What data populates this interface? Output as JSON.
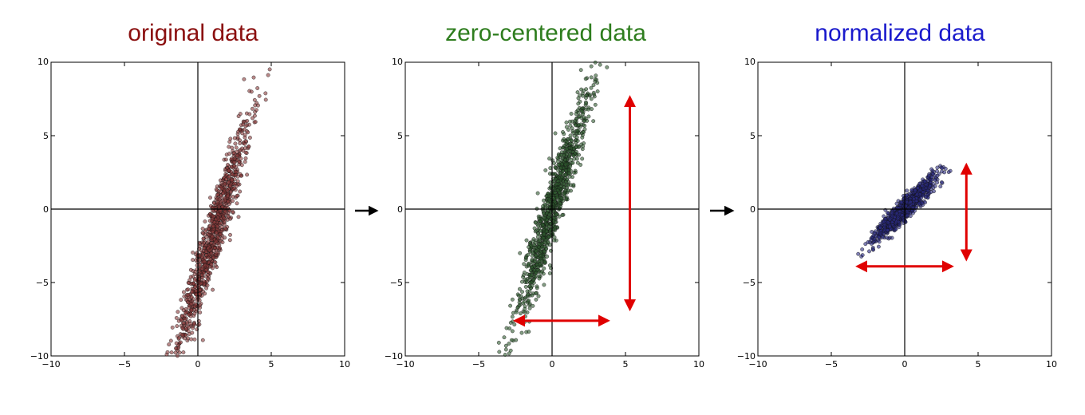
{
  "chart_data": [
    {
      "type": "scatter",
      "title": "original data",
      "title_color": "#8b1010",
      "point_color": "#8b3a3a",
      "xlim": [
        -10,
        10
      ],
      "ylim": [
        -10,
        10
      ],
      "xticks": [
        "−10",
        "−5",
        "0",
        "5",
        "10"
      ],
      "yticks": [
        "10",
        "5",
        "0",
        "−5",
        "−10"
      ],
      "distribution": {
        "mean": [
          1.0,
          -2.0
        ],
        "std_x": 1.3,
        "rho": 0.95,
        "slope": 3.0,
        "n": 1000
      },
      "arrows": []
    },
    {
      "type": "scatter",
      "title": "zero-centered data",
      "title_color": "#2e7d1e",
      "point_color": "#2f5a2f",
      "xlim": [
        -10,
        10
      ],
      "ylim": [
        -10,
        10
      ],
      "xticks": [
        "−10",
        "−5",
        "0",
        "5",
        "10"
      ],
      "yticks": [
        "10",
        "5",
        "0",
        "−5",
        "−10"
      ],
      "distribution": {
        "mean": [
          0.0,
          0.0
        ],
        "std_x": 1.3,
        "rho": 0.95,
        "slope": 3.0,
        "n": 1000
      },
      "arrows": [
        {
          "orientation": "vertical",
          "at": 5.3,
          "from": -6.8,
          "to": 7.6
        },
        {
          "orientation": "horizontal",
          "at": -7.6,
          "from": -2.5,
          "to": 3.8
        }
      ]
    },
    {
      "type": "scatter",
      "title": "normalized data",
      "title_color": "#1a1acc",
      "point_color": "#2a2a80",
      "xlim": [
        -10,
        10
      ],
      "ylim": [
        -10,
        10
      ],
      "xticks": [
        "−10",
        "−5",
        "0",
        "5",
        "10"
      ],
      "yticks": [
        "10",
        "5",
        "0",
        "−5",
        "−10"
      ],
      "distribution": {
        "mean": [
          0.0,
          0.0
        ],
        "std_x": 1.0,
        "rho": 0.93,
        "slope": 0.95,
        "n": 1000
      },
      "arrows": [
        {
          "orientation": "vertical",
          "at": 4.2,
          "from": -3.4,
          "to": 3.0
        },
        {
          "orientation": "horizontal",
          "at": -3.9,
          "from": -3.2,
          "to": 3.2
        }
      ]
    }
  ],
  "flow_arrows": [
    "→",
    "→"
  ],
  "colors": {
    "arrow": "#e00000",
    "flow_arrow": "#000000"
  }
}
